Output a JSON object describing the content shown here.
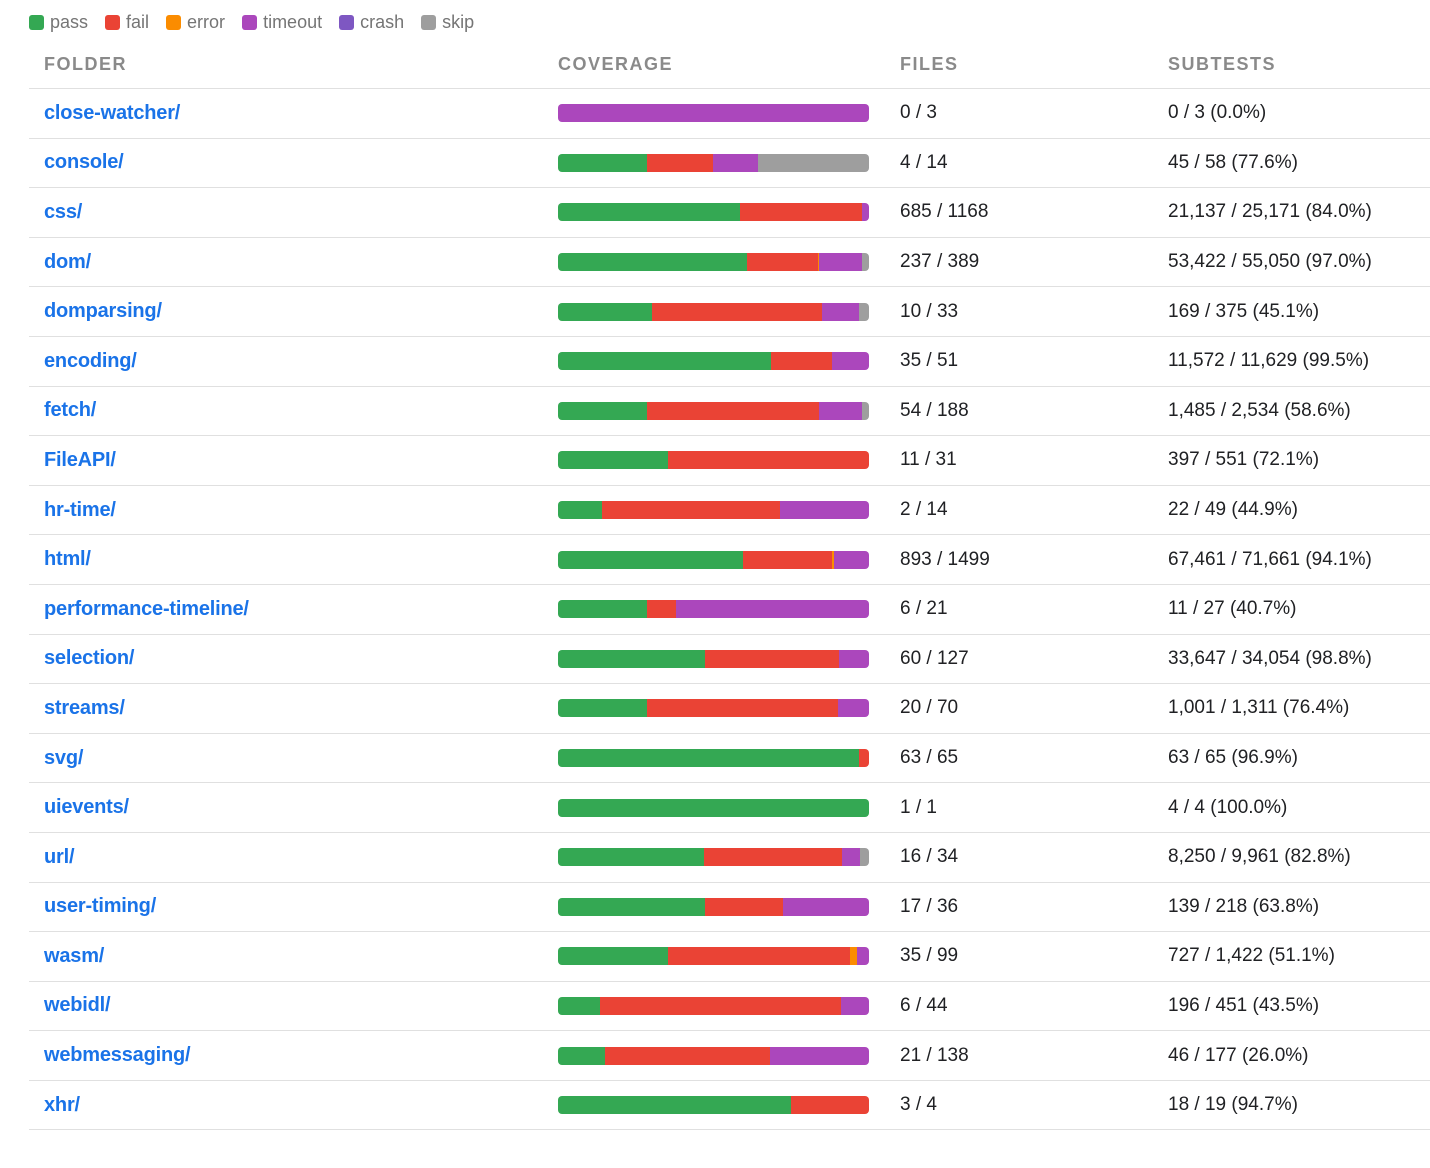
{
  "legend": [
    {
      "key": "pass",
      "label": "pass",
      "color": "#34a853"
    },
    {
      "key": "fail",
      "label": "fail",
      "color": "#ea4335"
    },
    {
      "key": "error",
      "label": "error",
      "color": "#fb8c00"
    },
    {
      "key": "timeout",
      "label": "timeout",
      "color": "#ab47bc"
    },
    {
      "key": "crash",
      "label": "crash",
      "color": "#7e57c2"
    },
    {
      "key": "skip",
      "label": "skip",
      "color": "#9e9e9e"
    }
  ],
  "table": {
    "headers": {
      "folder": "FOLDER",
      "coverage": "COVERAGE",
      "files": "FILES",
      "subtests": "SUBTESTS"
    },
    "rows": [
      {
        "folder": "close-watcher/",
        "files": "0 / 3",
        "subtests": "0 / 3 (0.0%)",
        "coverage": {
          "pass": 0,
          "fail": 0,
          "error": 0,
          "timeout": 1.0,
          "crash": 0,
          "skip": 0
        }
      },
      {
        "folder": "console/",
        "files": "4 / 14",
        "subtests": "45 / 58 (77.6%)",
        "coverage": {
          "pass": 0.286,
          "fail": 0.214,
          "error": 0,
          "timeout": 0.143,
          "crash": 0,
          "skip": 0.357
        }
      },
      {
        "folder": "css/",
        "files": "685 / 1168",
        "subtests": "21,137 / 25,171 (84.0%)",
        "coverage": {
          "pass": 0.586,
          "fail": 0.391,
          "error": 0.002,
          "timeout": 0.021,
          "crash": 0,
          "skip": 0
        }
      },
      {
        "folder": "dom/",
        "files": "237 / 389",
        "subtests": "53,422 / 55,050 (97.0%)",
        "coverage": {
          "pass": 0.609,
          "fail": 0.226,
          "error": 0.005,
          "timeout": 0.139,
          "crash": 0,
          "skip": 0.021
        }
      },
      {
        "folder": "domparsing/",
        "files": "10 / 33",
        "subtests": "169 / 375 (45.1%)",
        "coverage": {
          "pass": 0.303,
          "fail": 0.545,
          "error": 0,
          "timeout": 0.121,
          "crash": 0,
          "skip": 0.031
        }
      },
      {
        "folder": "encoding/",
        "files": "35 / 51",
        "subtests": "11,572 / 11,629 (99.5%)",
        "coverage": {
          "pass": 0.686,
          "fail": 0.196,
          "error": 0,
          "timeout": 0.118,
          "crash": 0,
          "skip": 0
        }
      },
      {
        "folder": "fetch/",
        "files": "54 / 188",
        "subtests": "1,485 / 2,534 (58.6%)",
        "coverage": {
          "pass": 0.287,
          "fail": 0.553,
          "error": 0,
          "timeout": 0.138,
          "crash": 0,
          "skip": 0.022
        }
      },
      {
        "folder": "FileAPI/",
        "files": "11 / 31",
        "subtests": "397 / 551 (72.1%)",
        "coverage": {
          "pass": 0.355,
          "fail": 0.645,
          "error": 0,
          "timeout": 0,
          "crash": 0,
          "skip": 0
        }
      },
      {
        "folder": "hr-time/",
        "files": "2 / 14",
        "subtests": "22 / 49 (44.9%)",
        "coverage": {
          "pass": 0.143,
          "fail": 0.571,
          "error": 0,
          "timeout": 0.286,
          "crash": 0,
          "skip": 0
        }
      },
      {
        "folder": "html/",
        "files": "893 / 1499",
        "subtests": "67,461 / 71,661 (94.1%)",
        "coverage": {
          "pass": 0.596,
          "fail": 0.286,
          "error": 0.004,
          "timeout": 0.114,
          "crash": 0,
          "skip": 0
        }
      },
      {
        "folder": "performance-timeline/",
        "files": "6 / 21",
        "subtests": "11 / 27 (40.7%)",
        "coverage": {
          "pass": 0.286,
          "fail": 0.095,
          "error": 0,
          "timeout": 0.619,
          "crash": 0,
          "skip": 0
        }
      },
      {
        "folder": "selection/",
        "files": "60 / 127",
        "subtests": "33,647 / 34,054 (98.8%)",
        "coverage": {
          "pass": 0.472,
          "fail": 0.433,
          "error": 0,
          "timeout": 0.095,
          "crash": 0,
          "skip": 0
        }
      },
      {
        "folder": "streams/",
        "files": "20 / 70",
        "subtests": "1,001 / 1,311 (76.4%)",
        "coverage": {
          "pass": 0.286,
          "fail": 0.614,
          "error": 0,
          "timeout": 0.1,
          "crash": 0,
          "skip": 0
        }
      },
      {
        "folder": "svg/",
        "files": "63 / 65",
        "subtests": "63 / 65 (96.9%)",
        "coverage": {
          "pass": 0.969,
          "fail": 0.031,
          "error": 0,
          "timeout": 0,
          "crash": 0,
          "skip": 0
        }
      },
      {
        "folder": "uievents/",
        "files": "1 / 1",
        "subtests": "4 / 4 (100.0%)",
        "coverage": {
          "pass": 1.0,
          "fail": 0,
          "error": 0,
          "timeout": 0,
          "crash": 0,
          "skip": 0
        }
      },
      {
        "folder": "url/",
        "files": "16 / 34",
        "subtests": "8,250 / 9,961 (82.8%)",
        "coverage": {
          "pass": 0.471,
          "fail": 0.441,
          "error": 0,
          "timeout": 0.059,
          "crash": 0,
          "skip": 0.029
        }
      },
      {
        "folder": "user-timing/",
        "files": "17 / 36",
        "subtests": "139 / 218 (63.8%)",
        "coverage": {
          "pass": 0.472,
          "fail": 0.25,
          "error": 0,
          "timeout": 0.278,
          "crash": 0,
          "skip": 0
        }
      },
      {
        "folder": "wasm/",
        "files": "35 / 99",
        "subtests": "727 / 1,422 (51.1%)",
        "coverage": {
          "pass": 0.354,
          "fail": 0.586,
          "error": 0.02,
          "timeout": 0.04,
          "crash": 0,
          "skip": 0
        }
      },
      {
        "folder": "webidl/",
        "files": "6 / 44",
        "subtests": "196 / 451 (43.5%)",
        "coverage": {
          "pass": 0.136,
          "fail": 0.773,
          "error": 0,
          "timeout": 0.091,
          "crash": 0,
          "skip": 0
        }
      },
      {
        "folder": "webmessaging/",
        "files": "21 / 138",
        "subtests": "46 / 177 (26.0%)",
        "coverage": {
          "pass": 0.152,
          "fail": 0.529,
          "error": 0,
          "timeout": 0.319,
          "crash": 0,
          "skip": 0
        }
      },
      {
        "folder": "xhr/",
        "files": "3 / 4",
        "subtests": "18 / 19 (94.7%)",
        "coverage": {
          "pass": 0.75,
          "fail": 0.25,
          "error": 0,
          "timeout": 0,
          "crash": 0,
          "skip": 0
        }
      }
    ]
  }
}
